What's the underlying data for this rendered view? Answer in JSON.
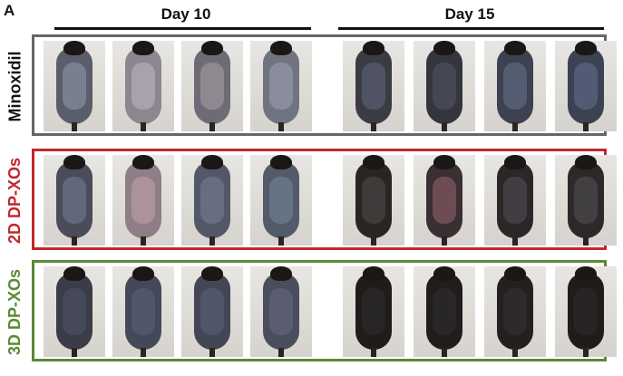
{
  "panel_label": "A",
  "headers": {
    "day10": "Day 10",
    "day15": "Day 15"
  },
  "groups": [
    {
      "name": "Minoxidil",
      "color": "#666666"
    },
    {
      "name": "2D DP-XOs",
      "color": "#c0282d"
    },
    {
      "name": "3D DP-XOs",
      "color": "#5a8a35"
    }
  ]
}
